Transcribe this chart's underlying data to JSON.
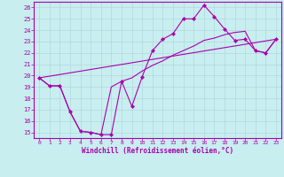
{
  "xlabel": "Windchill (Refroidissement éolien,°C)",
  "bg_color": "#c8eef0",
  "grid_color": "#b0d8dc",
  "line_color": "#aa00aa",
  "xlim": [
    -0.5,
    23.5
  ],
  "ylim": [
    14.5,
    26.5
  ],
  "xticks": [
    0,
    1,
    2,
    3,
    4,
    5,
    6,
    7,
    8,
    9,
    10,
    11,
    12,
    13,
    14,
    15,
    16,
    17,
    18,
    19,
    20,
    21,
    22,
    23
  ],
  "yticks": [
    15,
    16,
    17,
    18,
    19,
    20,
    21,
    22,
    23,
    24,
    25,
    26
  ],
  "line1_x": [
    0,
    1,
    2,
    3,
    4,
    5,
    6,
    7,
    8,
    9,
    10,
    11,
    12,
    13,
    14,
    15,
    16,
    17,
    18,
    19,
    20,
    21,
    22,
    23
  ],
  "line1_y": [
    19.8,
    19.1,
    19.1,
    16.8,
    15.1,
    15.0,
    14.8,
    14.8,
    19.5,
    17.3,
    19.9,
    22.2,
    23.2,
    23.7,
    25.0,
    25.0,
    26.2,
    25.2,
    24.1,
    23.1,
    23.2,
    22.2,
    22.0,
    23.2
  ],
  "line2_x": [
    0,
    1,
    2,
    3,
    4,
    5,
    6,
    7,
    8,
    9,
    10,
    11,
    12,
    13,
    14,
    15,
    16,
    17,
    18,
    19,
    20,
    21,
    22,
    23
  ],
  "line2_y": [
    19.8,
    19.1,
    19.1,
    16.8,
    15.1,
    15.0,
    14.8,
    19.0,
    19.5,
    19.8,
    20.4,
    20.9,
    21.3,
    21.8,
    22.2,
    22.6,
    23.1,
    23.3,
    23.6,
    23.8,
    23.9,
    22.2,
    22.0,
    23.2
  ],
  "line3_x": [
    0,
    23
  ],
  "line3_y": [
    19.8,
    23.2
  ]
}
